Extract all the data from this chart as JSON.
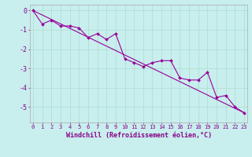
{
  "x_data": [
    0,
    1,
    2,
    3,
    4,
    5,
    6,
    7,
    8,
    9,
    10,
    11,
    12,
    13,
    14,
    15,
    16,
    17,
    18,
    19,
    20,
    21,
    22,
    23
  ],
  "y_data": [
    0.0,
    -0.7,
    -0.5,
    -0.8,
    -0.8,
    -0.9,
    -1.4,
    -1.2,
    -1.5,
    -1.2,
    -2.5,
    -2.7,
    -2.9,
    -2.7,
    -2.6,
    -2.6,
    -3.5,
    -3.6,
    -3.6,
    -3.2,
    -4.5,
    -4.4,
    -5.0,
    -5.3
  ],
  "trend_x": [
    0,
    23
  ],
  "trend_y": [
    0.0,
    -5.3
  ],
  "line_color": "#990099",
  "marker_color": "#990099",
  "bg_color": "#c8eeee",
  "grid_color": "#aaddcc",
  "xlabel": "Windchill (Refroidissement éolien,°C)",
  "yticks": [
    0,
    -1,
    -2,
    -3,
    -4,
    -5
  ],
  "xticks": [
    0,
    1,
    2,
    3,
    4,
    5,
    6,
    7,
    8,
    9,
    10,
    11,
    12,
    13,
    14,
    15,
    16,
    17,
    18,
    19,
    20,
    21,
    22,
    23
  ],
  "xlim": [
    -0.3,
    23.3
  ],
  "ylim": [
    -5.8,
    0.3
  ],
  "font_color": "#880088",
  "tick_fontsize": 5,
  "label_fontsize": 6
}
